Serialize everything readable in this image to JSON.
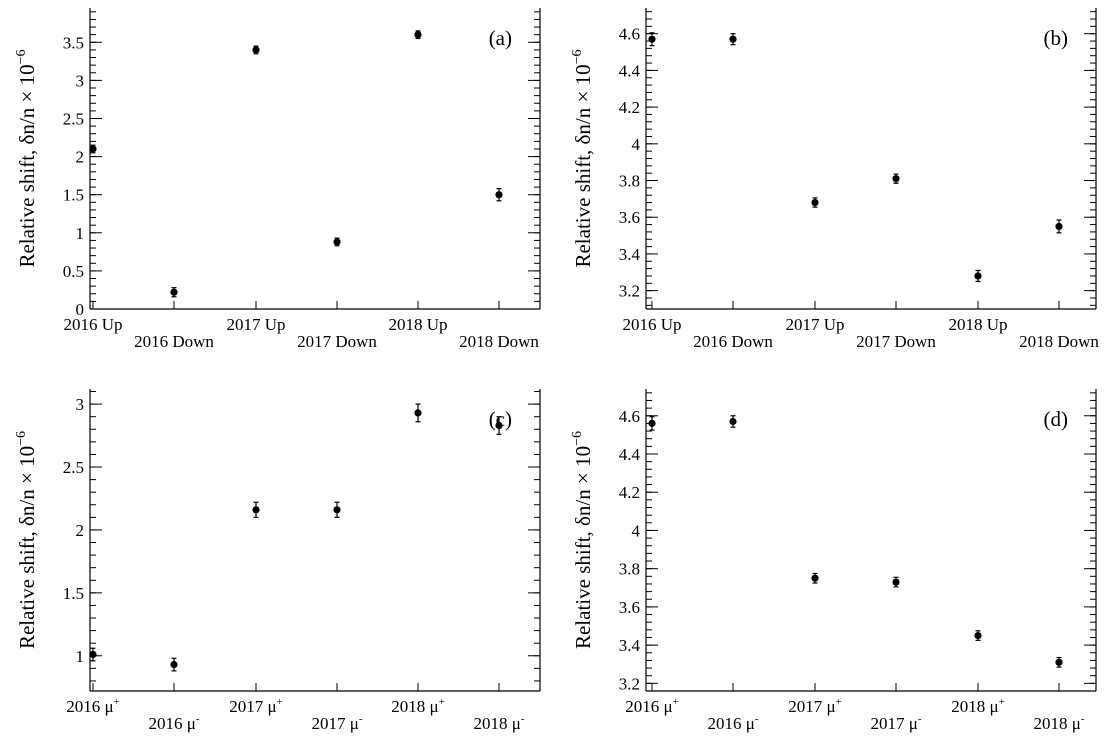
{
  "chart_data": [
    {
      "type": "scatter",
      "panel": "(a)",
      "ylabel": "Relative shift, δn/n × 10",
      "ylabel_exponent": "−6",
      "ylim": [
        0,
        3.95
      ],
      "yticks": [
        0,
        0.5,
        1,
        1.5,
        2,
        2.5,
        3,
        3.5
      ],
      "ytick_labels": [
        "0",
        "0.5",
        "1",
        "1.5",
        "2",
        "2.5",
        "3",
        "3.5"
      ],
      "categories": [
        {
          "base": "2016 Up",
          "sup": ""
        },
        {
          "base": "2016 Down",
          "sup": ""
        },
        {
          "base": "2017 Up",
          "sup": ""
        },
        {
          "base": "2017 Down",
          "sup": ""
        },
        {
          "base": "2018 Up",
          "sup": ""
        },
        {
          "base": "2018 Down",
          "sup": ""
        }
      ],
      "values": [
        2.1,
        0.22,
        3.4,
        0.88,
        3.6,
        1.5
      ],
      "errors": [
        0.05,
        0.06,
        0.05,
        0.05,
        0.05,
        0.08
      ]
    },
    {
      "type": "scatter",
      "panel": "(b)",
      "ylabel": "Relative shift, δn/n × 10",
      "ylabel_exponent": "−6",
      "ylim": [
        3.1,
        4.74
      ],
      "yticks": [
        3.2,
        3.4,
        3.6,
        3.8,
        4.0,
        4.2,
        4.4,
        4.6
      ],
      "ytick_labels": [
        "3.2",
        "3.4",
        "3.6",
        "3.8",
        "4",
        "4.2",
        "4.4",
        "4.6"
      ],
      "categories": [
        {
          "base": "2016 Up",
          "sup": ""
        },
        {
          "base": "2016 Down",
          "sup": ""
        },
        {
          "base": "2017 Up",
          "sup": ""
        },
        {
          "base": "2017 Down",
          "sup": ""
        },
        {
          "base": "2018 Up",
          "sup": ""
        },
        {
          "base": "2018 Down",
          "sup": ""
        }
      ],
      "values": [
        4.57,
        4.57,
        3.68,
        3.81,
        3.28,
        3.55
      ],
      "errors": [
        0.035,
        0.03,
        0.025,
        0.025,
        0.03,
        0.035
      ]
    },
    {
      "type": "scatter",
      "panel": "(c)",
      "ylabel": "Relative shift, δn/n × 10",
      "ylabel_exponent": "−6",
      "ylim": [
        0.72,
        3.12
      ],
      "yticks": [
        1,
        1.5,
        2,
        2.5,
        3
      ],
      "ytick_labels": [
        "1",
        "1.5",
        "2",
        "2.5",
        "3"
      ],
      "categories": [
        {
          "base": "2016 μ",
          "sup": "+"
        },
        {
          "base": "2016 μ",
          "sup": "-"
        },
        {
          "base": "2017 μ",
          "sup": "+"
        },
        {
          "base": "2017 μ",
          "sup": "-"
        },
        {
          "base": "2018 μ",
          "sup": "+"
        },
        {
          "base": "2018 μ",
          "sup": "-"
        }
      ],
      "values": [
        1.01,
        0.93,
        2.16,
        2.16,
        2.93,
        2.83
      ],
      "errors": [
        0.05,
        0.05,
        0.06,
        0.06,
        0.07,
        0.07
      ]
    },
    {
      "type": "scatter",
      "panel": "(d)",
      "ylabel": "Relative shift, δn/n × 10",
      "ylabel_exponent": "−6",
      "ylim": [
        3.16,
        4.74
      ],
      "yticks": [
        3.2,
        3.4,
        3.6,
        3.8,
        4.0,
        4.2,
        4.4,
        4.6
      ],
      "ytick_labels": [
        "3.2",
        "3.4",
        "3.6",
        "3.8",
        "4",
        "4.2",
        "4.4",
        "4.6"
      ],
      "categories": [
        {
          "base": "2016 μ",
          "sup": "+"
        },
        {
          "base": "2016 μ",
          "sup": "-"
        },
        {
          "base": "2017 μ",
          "sup": "+"
        },
        {
          "base": "2017 μ",
          "sup": "-"
        },
        {
          "base": "2018 μ",
          "sup": "+"
        },
        {
          "base": "2018 μ",
          "sup": "-"
        }
      ],
      "values": [
        4.56,
        4.57,
        3.75,
        3.73,
        3.45,
        3.31
      ],
      "errors": [
        0.035,
        0.03,
        0.025,
        0.025,
        0.025,
        0.025
      ]
    }
  ]
}
